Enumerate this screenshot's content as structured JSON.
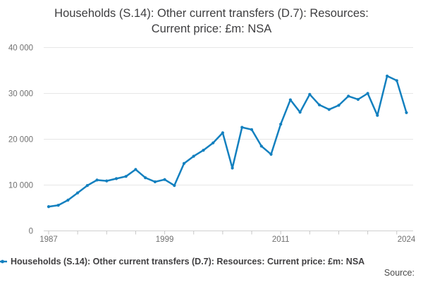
{
  "title": "Households (S.14): Other current transfers (D.7): Resources: Current price: £m: NSA",
  "legend": {
    "label": "Households (S.14): Other current transfers (D.7): Resources: Current price: £m: NSA"
  },
  "source_label": "Source:",
  "colors": {
    "line": "#1380bf",
    "grid": "#e6e6e6",
    "axis_line": "#cfcfcf",
    "tick": "#c6c6c6",
    "axis_text": "#707070",
    "dark_text": "#414042"
  },
  "chart_data": {
    "type": "line",
    "title": "Households (S.14): Other current transfers (D.7): Resources: Current price: £m: NSA",
    "xlabel": "",
    "ylabel": "",
    "ylim": [
      0,
      40000
    ],
    "grid": true,
    "legend_position": "bottom-left",
    "x": [
      1987,
      1988,
      1989,
      1990,
      1991,
      1992,
      1993,
      1994,
      1995,
      1996,
      1997,
      1998,
      1999,
      2000,
      2001,
      2002,
      2003,
      2004,
      2005,
      2006,
      2007,
      2008,
      2009,
      2010,
      2011,
      2012,
      2013,
      2014,
      2015,
      2016,
      2017,
      2018,
      2019,
      2020,
      2021,
      2022,
      2023,
      2024
    ],
    "series": [
      {
        "name": "Households (S.14): Other current transfers (D.7): Resources: Current price: £m: NSA",
        "values": [
          5300,
          5600,
          6700,
          8300,
          9900,
          11100,
          10900,
          11400,
          11900,
          13400,
          11600,
          10700,
          11200,
          9900,
          14700,
          16300,
          17600,
          19200,
          21400,
          13700,
          22600,
          22100,
          18500,
          16700,
          23300,
          28600,
          25900,
          29800,
          27500,
          26500,
          27400,
          29400,
          28700,
          30000,
          25200,
          33800,
          32800,
          25800
        ]
      }
    ],
    "yticks": [
      {
        "value": 0,
        "label": "0"
      },
      {
        "value": 10000,
        "label": "10 000"
      },
      {
        "value": 20000,
        "label": "20 000"
      },
      {
        "value": 30000,
        "label": "30 000"
      },
      {
        "value": 40000,
        "label": "40 000"
      }
    ],
    "xticks": [
      1987,
      1990,
      1993,
      1996,
      1999,
      2002,
      2005,
      2008,
      2011,
      2014,
      2017,
      2020,
      2023
    ],
    "xtick_labels": [
      {
        "year": 1987,
        "label": "1987"
      },
      {
        "year": 1999,
        "label": "1999"
      },
      {
        "year": 2011,
        "label": "2011"
      },
      {
        "year": 2024,
        "label": "2024"
      }
    ]
  }
}
